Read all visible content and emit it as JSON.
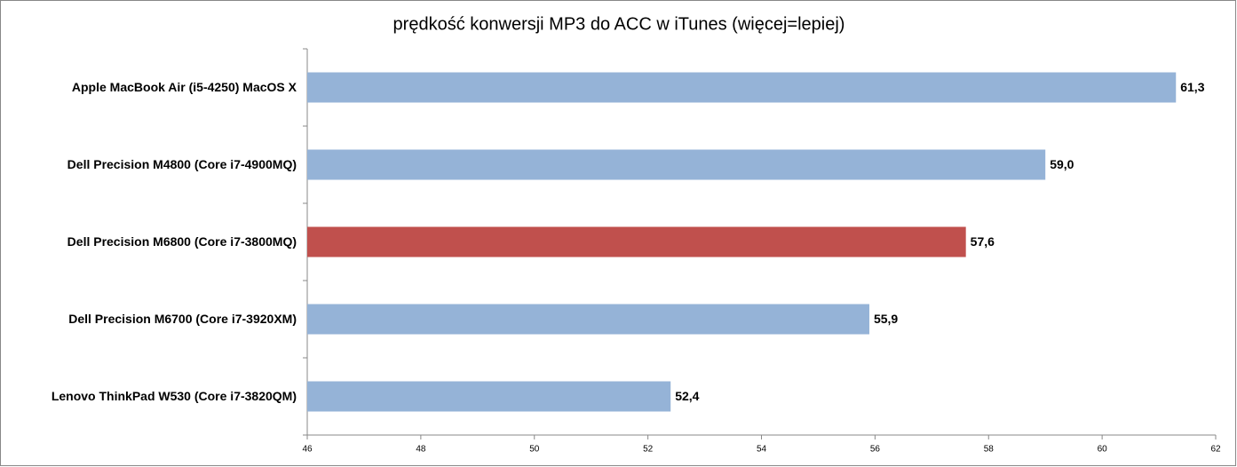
{
  "chart_data": {
    "type": "bar",
    "orientation": "horizontal",
    "title": "prędkość konwersji MP3 do ACC w iTunes (więcej=lepiej)",
    "categories": [
      "Apple MacBook Air (i5-4250) MacOS X",
      "Dell Precision M4800 (Core i7-4900MQ)",
      "Dell Precision M6800 (Core i7-3800MQ)",
      "Dell Precision M6700 (Core i7-3920XM)",
      "Lenovo ThinkPad W530 (Core i7-3820QM)"
    ],
    "values": [
      61.3,
      59.0,
      57.6,
      55.9,
      52.4
    ],
    "value_labels": [
      "61,3",
      "59,0",
      "57,6",
      "55,9",
      "52,4"
    ],
    "colors": [
      "#95b3d7",
      "#95b3d7",
      "#c0504d",
      "#95b3d7",
      "#95b3d7"
    ],
    "xlim": [
      46,
      62
    ],
    "xticks": [
      46,
      48,
      50,
      52,
      54,
      56,
      58,
      60,
      62
    ],
    "grid": false
  }
}
